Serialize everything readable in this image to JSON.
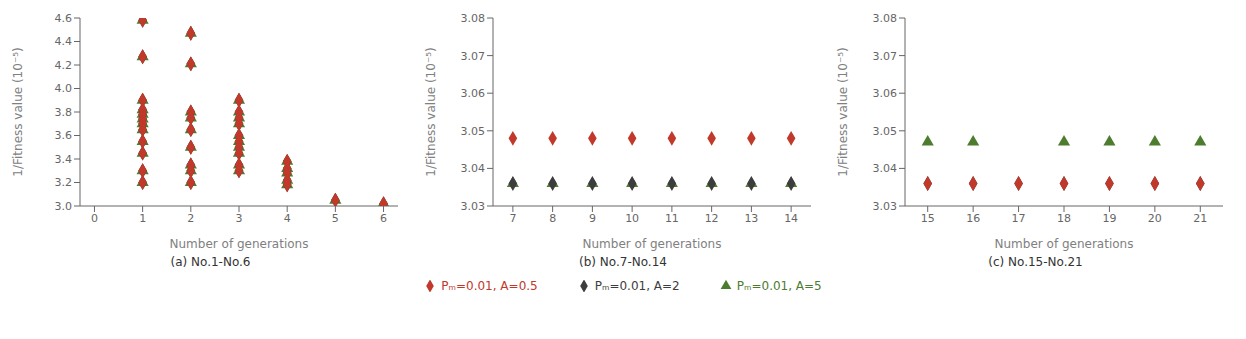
{
  "chart_data": [
    {
      "type": "scatter",
      "title": "(a) No.1-No.6",
      "x_label": "Number of generations",
      "y_label": "1/Fitness value (10⁻⁵)",
      "xlim": [
        -0.3,
        6.3
      ],
      "ylim": [
        3.0,
        4.6
      ],
      "xticks": [
        0,
        1,
        2,
        3,
        4,
        5,
        6
      ],
      "yticks": [
        {
          "value": 3.0,
          "label": "3.0"
        },
        3.2,
        3.4,
        3.6,
        3.8,
        {
          "value": 4.0,
          "label": "4.0"
        },
        4.2,
        4.4,
        4.6
      ],
      "grid": false,
      "legend": "bottom",
      "series": [
        {
          "name": "Pₘ=0.01, A=0.5",
          "color": "#c0392b",
          "marker": "diamond",
          "x": [
            1,
            1,
            1,
            1,
            1,
            1,
            1,
            1,
            1,
            1,
            1,
            1,
            2,
            2,
            2,
            2,
            2,
            2,
            2,
            2,
            2,
            3,
            3,
            3,
            3,
            3,
            3,
            3,
            3,
            3,
            3,
            4,
            4,
            4,
            4,
            4,
            5,
            6
          ],
          "values": [
            4.58,
            4.27,
            3.9,
            3.82,
            3.78,
            3.74,
            3.7,
            3.65,
            3.55,
            3.45,
            3.3,
            3.2,
            4.47,
            4.21,
            3.8,
            3.75,
            3.65,
            3.5,
            3.35,
            3.3,
            3.2,
            3.9,
            3.8,
            3.75,
            3.7,
            3.6,
            3.55,
            3.5,
            3.45,
            3.35,
            3.3,
            3.38,
            3.32,
            3.28,
            3.22,
            3.18,
            3.05,
            3.02
          ]
        },
        {
          "name": "Pₘ=0.01, A=2",
          "color": "#3d3d3d",
          "marker": "diamond",
          "x": [
            1,
            1,
            1,
            1,
            1,
            1,
            1,
            1,
            1,
            1,
            1,
            1,
            2,
            2,
            2,
            2,
            2,
            2,
            2,
            2,
            2,
            3,
            3,
            3,
            3,
            3,
            3,
            3,
            3,
            3,
            3,
            4,
            4,
            4,
            4,
            4,
            5,
            6
          ],
          "values": [
            4.58,
            4.27,
            3.9,
            3.82,
            3.78,
            3.74,
            3.7,
            3.65,
            3.55,
            3.45,
            3.3,
            3.2,
            4.47,
            4.21,
            3.8,
            3.75,
            3.65,
            3.5,
            3.35,
            3.3,
            3.2,
            3.9,
            3.8,
            3.75,
            3.7,
            3.6,
            3.55,
            3.5,
            3.45,
            3.35,
            3.3,
            3.38,
            3.32,
            3.28,
            3.22,
            3.18,
            3.05,
            3.02
          ]
        },
        {
          "name": "Pₘ=0.01, A=5",
          "color": "#4d7c2f",
          "marker": "triangle",
          "x": [
            1,
            1,
            1,
            1,
            1,
            1,
            1,
            1,
            1,
            1,
            1,
            1,
            2,
            2,
            2,
            2,
            2,
            2,
            2,
            2,
            2,
            3,
            3,
            3,
            3,
            3,
            3,
            3,
            3,
            3,
            3,
            4,
            4,
            4,
            4,
            4,
            5,
            6
          ],
          "values": [
            4.58,
            4.27,
            3.9,
            3.82,
            3.78,
            3.74,
            3.7,
            3.65,
            3.55,
            3.45,
            3.3,
            3.2,
            4.47,
            4.21,
            3.8,
            3.75,
            3.65,
            3.5,
            3.35,
            3.3,
            3.2,
            3.9,
            3.8,
            3.75,
            3.7,
            3.6,
            3.55,
            3.5,
            3.45,
            3.35,
            3.3,
            3.38,
            3.32,
            3.28,
            3.22,
            3.18,
            3.05,
            3.02
          ]
        }
      ]
    },
    {
      "type": "scatter",
      "title": "(b) No.7-No.14",
      "x_label": "Number of generations",
      "y_label": "1/Fitness value (10⁻⁵)",
      "xlim": [
        6.5,
        14.5
      ],
      "ylim": [
        3.03,
        3.08
      ],
      "xticks": [
        7,
        8,
        9,
        10,
        11,
        12,
        13,
        14
      ],
      "yticks": [
        3.03,
        3.04,
        3.05,
        3.06,
        3.07,
        3.08
      ],
      "grid": false,
      "legend": "bottom",
      "series": [
        {
          "name": "Pₘ=0.01, A=0.5",
          "color": "#c0392b",
          "marker": "diamond",
          "x": [
            7,
            8,
            9,
            10,
            11,
            12,
            13,
            14
          ],
          "values": [
            3.048,
            3.048,
            3.048,
            3.048,
            3.048,
            3.048,
            3.048,
            3.048
          ]
        },
        {
          "name": "Pₘ=0.01, A=2",
          "color": "#3d3d3d",
          "marker": "diamond",
          "x": [
            7,
            8,
            9,
            10,
            11,
            12,
            13,
            14
          ],
          "values": [
            3.036,
            3.036,
            3.036,
            3.036,
            3.036,
            3.036,
            3.036,
            3.036
          ]
        },
        {
          "name": "Pₘ=0.01, A=5",
          "color": "#4d7c2f",
          "marker": "triangle",
          "x": [
            7,
            8,
            9,
            10,
            11,
            12,
            13,
            14
          ],
          "values": [
            3.036,
            3.036,
            3.036,
            3.036,
            3.036,
            3.036,
            3.036,
            3.036
          ]
        }
      ]
    },
    {
      "type": "scatter",
      "title": "(c) No.15-No.21",
      "x_label": "Number of generations",
      "y_label": "1/Fitness value (10⁻⁵)",
      "xlim": [
        14.5,
        21.5
      ],
      "ylim": [
        3.03,
        3.08
      ],
      "xticks": [
        15,
        16,
        17,
        18,
        19,
        20,
        21
      ],
      "yticks": [
        3.03,
        3.04,
        3.05,
        3.06,
        3.07,
        3.08
      ],
      "grid": false,
      "legend": "bottom",
      "series": [
        {
          "name": "Pₘ=0.01, A=0.5",
          "color": "#c0392b",
          "marker": "diamond",
          "x": [
            15,
            16,
            17,
            18,
            19,
            20,
            21
          ],
          "values": [
            3.036,
            3.036,
            3.036,
            3.036,
            3.036,
            3.036,
            3.036
          ]
        },
        {
          "name": "Pₘ=0.01, A=2",
          "color": "#3d3d3d",
          "marker": "diamond",
          "x": [
            15,
            16,
            17,
            18,
            19,
            20,
            21
          ],
          "values": [
            3.036,
            3.036,
            3.036,
            3.036,
            3.036,
            3.036,
            3.036
          ]
        },
        {
          "name": "Pₘ=0.01, A=5",
          "color": "#4d7c2f",
          "marker": "triangle",
          "x": [
            15,
            16,
            18,
            19,
            20,
            21
          ],
          "values": [
            3.047,
            3.047,
            3.047,
            3.047,
            3.047,
            3.047
          ]
        }
      ]
    }
  ]
}
